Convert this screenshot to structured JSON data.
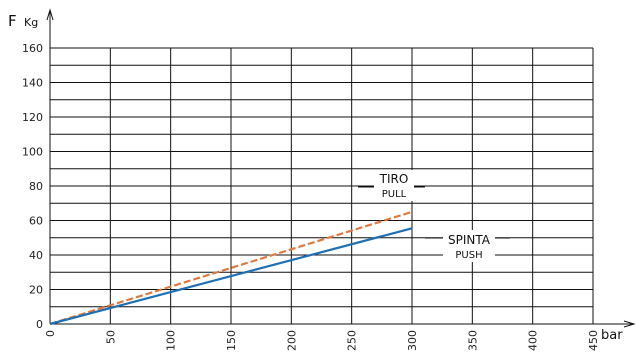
{
  "chart_data": {
    "type": "line",
    "ylabel_main": "F",
    "ylabel_unit": "Kg",
    "xlabel": "bar",
    "xlim": [
      0,
      450
    ],
    "ylim": [
      0,
      160
    ],
    "x_ticks": [
      "0",
      "50",
      "100",
      "150",
      "200",
      "250",
      "300",
      "350",
      "400",
      "450"
    ],
    "y_ticks": [
      "0",
      "20",
      "40",
      "60",
      "80",
      "100",
      "120",
      "140",
      "160"
    ],
    "grid": true,
    "series": [
      {
        "name_line1": "TIRO",
        "name_line2": "PULL",
        "color": "#e07840",
        "dashed": true,
        "x": [
          0,
          300
        ],
        "y": [
          0,
          65
        ]
      },
      {
        "name_line1": "SPINTA",
        "name_line2": "PUSH",
        "color": "#1f6fb5",
        "dashed": false,
        "x": [
          0,
          300
        ],
        "y": [
          0,
          55.5
        ]
      }
    ]
  }
}
